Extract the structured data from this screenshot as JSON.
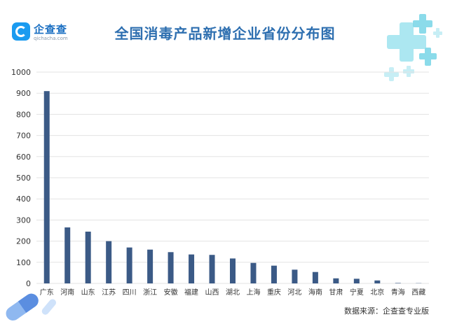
{
  "logo": {
    "name": "企查查",
    "domain": "qichacha.com"
  },
  "source": "数据来源：企查查专业版",
  "colors": {
    "bar": "#3b5a86",
    "grid": "#e3e3e3",
    "title": "#2e6fb0",
    "accent": "#7fd8e8"
  },
  "chart_data": {
    "type": "bar",
    "title": "全国消毒产品新增企业省份分布图",
    "xlabel": "",
    "ylabel": "",
    "ylim": [
      0,
      1000
    ],
    "yticks": [
      0,
      100,
      200,
      300,
      400,
      500,
      600,
      700,
      800,
      900,
      1000
    ],
    "grid": true,
    "categories": [
      "广东",
      "河南",
      "山东",
      "江苏",
      "四川",
      "浙江",
      "安徽",
      "福建",
      "山西",
      "湖北",
      "上海",
      "重庆",
      "河北",
      "海南",
      "甘肃",
      "宁夏",
      "北京",
      "青海",
      "西藏"
    ],
    "values": [
      910,
      265,
      245,
      200,
      170,
      160,
      148,
      137,
      135,
      118,
      97,
      84,
      65,
      54,
      24,
      22,
      14,
      2,
      1
    ]
  }
}
